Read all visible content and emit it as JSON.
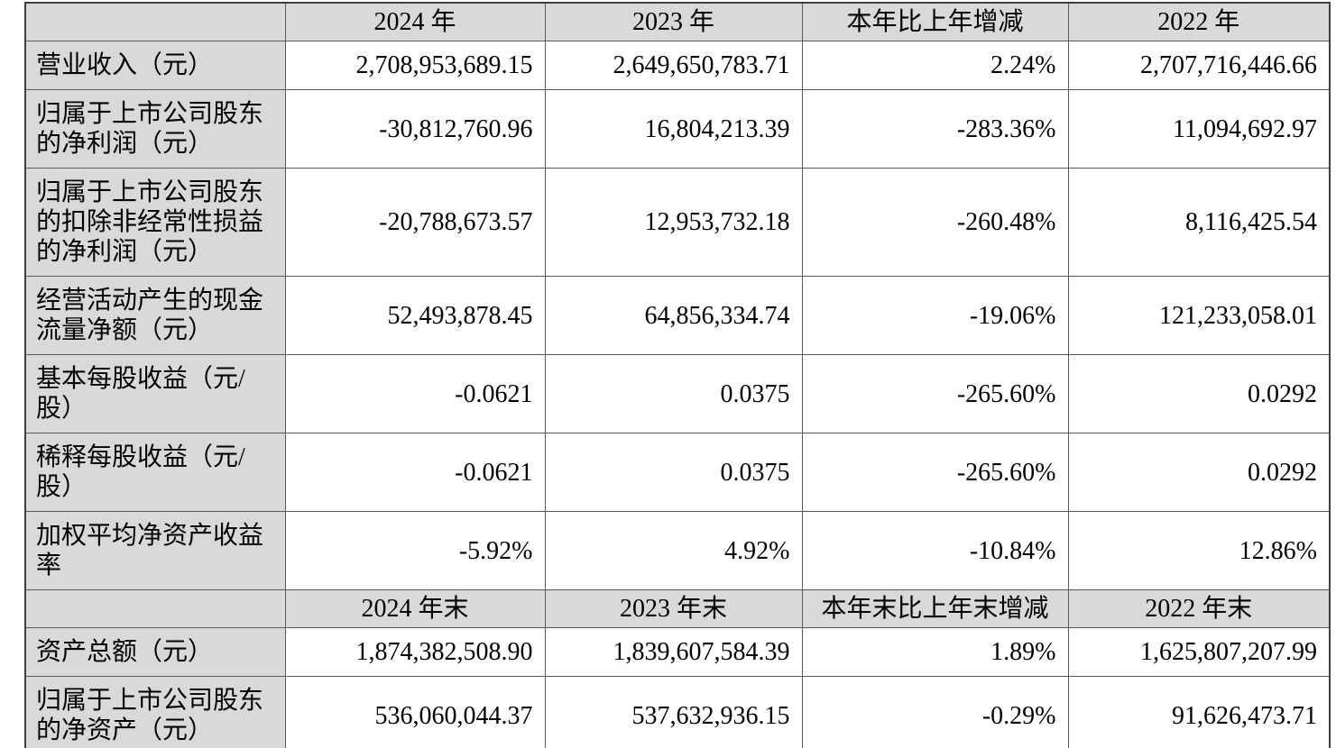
{
  "table": {
    "colors": {
      "header_bg": "#d9d9d9",
      "border": "#595959",
      "text": "#000000"
    },
    "rows": [
      {
        "type": "header",
        "cells": [
          "",
          "2024 年",
          "2023 年",
          "本年比上年增减",
          "2022 年"
        ]
      },
      {
        "type": "data",
        "label": "营业收入（元）",
        "values": [
          "2,708,953,689.15",
          "2,649,650,783.71",
          "2.24%",
          "2,707,716,446.66"
        ]
      },
      {
        "type": "data",
        "label": "归属于上市公司股东的净利润（元）",
        "values": [
          "-30,812,760.96",
          "16,804,213.39",
          "-283.36%",
          "11,094,692.97"
        ]
      },
      {
        "type": "data",
        "label": "归属于上市公司股东的扣除非经常性损益的净利润（元）",
        "values": [
          "-20,788,673.57",
          "12,953,732.18",
          "-260.48%",
          "8,116,425.54"
        ]
      },
      {
        "type": "data",
        "label": "经营活动产生的现金流量净额（元）",
        "values": [
          "52,493,878.45",
          "64,856,334.74",
          "-19.06%",
          "121,233,058.01"
        ]
      },
      {
        "type": "data",
        "label": "基本每股收益（元/股）",
        "values": [
          "-0.0621",
          "0.0375",
          "-265.60%",
          "0.0292"
        ]
      },
      {
        "type": "data",
        "label": "稀释每股收益（元/股）",
        "values": [
          "-0.0621",
          "0.0375",
          "-265.60%",
          "0.0292"
        ]
      },
      {
        "type": "data",
        "label": "加权平均净资产收益率",
        "values": [
          "-5.92%",
          "4.92%",
          "-10.84%",
          "12.86%"
        ]
      },
      {
        "type": "header",
        "cells": [
          "",
          "2024 年末",
          "2023 年末",
          "本年末比上年末增减",
          "2022 年末"
        ]
      },
      {
        "type": "data",
        "label": "资产总额（元）",
        "values": [
          "1,874,382,508.90",
          "1,839,607,584.39",
          "1.89%",
          "1,625,807,207.99"
        ]
      },
      {
        "type": "data",
        "label": "归属于上市公司股东的净资产（元）",
        "values": [
          "536,060,044.37",
          "537,632,936.15",
          "-0.29%",
          "91,626,473.71"
        ]
      }
    ]
  }
}
